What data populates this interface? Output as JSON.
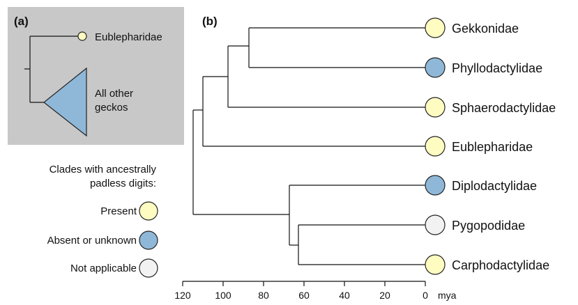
{
  "panel_a": {
    "letter": "(a)",
    "leaf_label": "Eublepharidae",
    "clade_label_line1": "All other",
    "clade_label_line2": "geckos"
  },
  "panel_b": {
    "letter": "(b)"
  },
  "legend": {
    "title_line1": "Clades with ancestrally",
    "title_line2": "padless digits:",
    "items": [
      {
        "label": "Present",
        "color": "#fffcc2"
      },
      {
        "label": "Absent or unknown",
        "color": "#8fb8d8"
      },
      {
        "label": "Not applicable",
        "color": "#f2f2f2"
      }
    ]
  },
  "colors": {
    "present": "#fffcc2",
    "absent": "#8fb8d8",
    "na": "#f2f2f2",
    "panel_a_bg": "#c8c8c8",
    "triangle": "#8fb8d8"
  },
  "taxa": [
    {
      "name": "Gekkonidae",
      "state": "present"
    },
    {
      "name": "Phyllodactylidae",
      "state": "absent"
    },
    {
      "name": "Sphaerodactylidae",
      "state": "present"
    },
    {
      "name": "Eublepharidae",
      "state": "present"
    },
    {
      "name": "Diplodactylidae",
      "state": "absent"
    },
    {
      "name": "Pygopodidae",
      "state": "na"
    },
    {
      "name": "Carphodactylidae",
      "state": "present"
    }
  ],
  "axis": {
    "ticks": [
      "120",
      "100",
      "80",
      "60",
      "40",
      "20",
      "0"
    ],
    "unit": "mya"
  }
}
